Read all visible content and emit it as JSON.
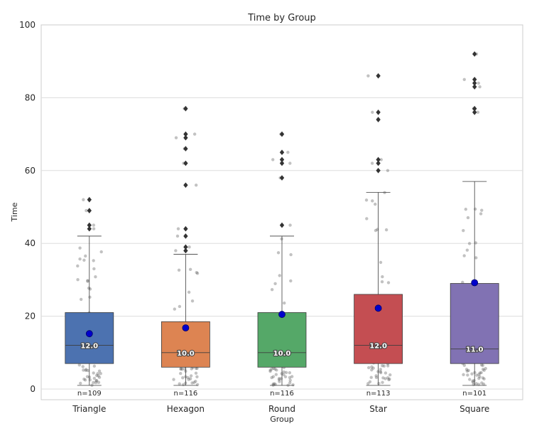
{
  "chart_data": {
    "type": "box",
    "title": "Time by Group",
    "xlabel": "Group",
    "ylabel": "Time",
    "ylim": [
      0,
      100
    ],
    "yticks": [
      0,
      20,
      40,
      60,
      80,
      100
    ],
    "grid": "horizontal",
    "categories": [
      "Triangle",
      "Hexagon",
      "Round",
      "Star",
      "Square"
    ],
    "colors": [
      "#4c72b0",
      "#dd8452",
      "#55a868",
      "#c44e52",
      "#8172b3"
    ],
    "mean_color": "#0000cc",
    "groups": [
      {
        "name": "Triangle",
        "n_label": "n=109",
        "median_label": "12.0",
        "q1": 7,
        "median": 12,
        "q3": 21,
        "whisker_low": 1,
        "whisker_high": 42,
        "mean": 15.2,
        "outliers": [
          44,
          45,
          49,
          52
        ]
      },
      {
        "name": "Hexagon",
        "n_label": "n=116",
        "median_label": "10.0",
        "q1": 6,
        "median": 10,
        "q3": 18.5,
        "whisker_low": 1,
        "whisker_high": 37,
        "mean": 16.8,
        "outliers": [
          38,
          39,
          42,
          44,
          56,
          62,
          66,
          69,
          70,
          77
        ]
      },
      {
        "name": "Round",
        "n_label": "n=116",
        "median_label": "10.0",
        "q1": 6,
        "median": 10,
        "q3": 21,
        "whisker_low": 1,
        "whisker_high": 42,
        "mean": 20.5,
        "outliers": [
          45,
          58,
          62,
          63,
          65,
          70
        ]
      },
      {
        "name": "Star",
        "n_label": "n=113",
        "median_label": "12.0",
        "q1": 7,
        "median": 12,
        "q3": 26,
        "whisker_low": 1,
        "whisker_high": 54,
        "mean": 22.2,
        "outliers": [
          60,
          62,
          63,
          74,
          76,
          86
        ]
      },
      {
        "name": "Square",
        "n_label": "n=101",
        "median_label": "11.0",
        "q1": 7,
        "median": 11,
        "q3": 29,
        "whisker_low": 1,
        "whisker_high": 57,
        "mean": 29.2,
        "outliers": [
          76,
          77,
          83,
          84,
          85,
          92
        ]
      }
    ]
  }
}
